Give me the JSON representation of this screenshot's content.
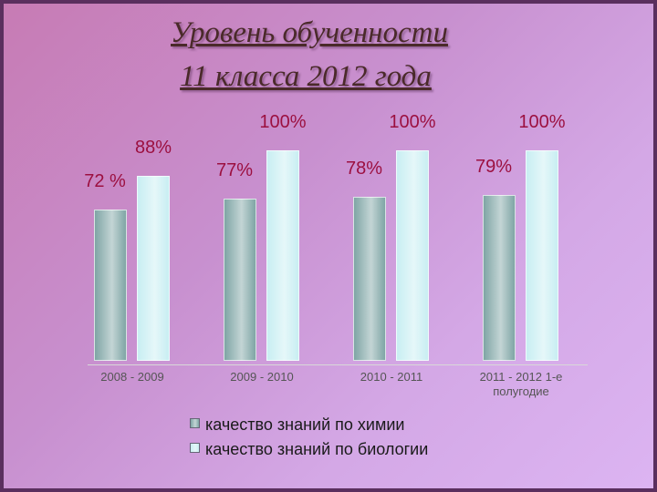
{
  "chart_data": {
    "type": "bar",
    "title": [
      "Уровень обученности",
      "11 класса  2012 года"
    ],
    "categories": [
      "2008 - 2009",
      "2009 - 2010",
      "2010 - 2011",
      "2011 - 2012 1-е полугодие"
    ],
    "series": [
      {
        "name": "качество знаний по химии",
        "color": "#7fa5a5",
        "values": [
          72,
          77,
          78,
          79
        ],
        "value_labels": [
          "72 %",
          "77%",
          "78%",
          "79%"
        ]
      },
      {
        "name": "качество знаний по биологии",
        "color": "#c8eef2",
        "values": [
          88,
          100,
          100,
          100
        ],
        "value_labels": [
          "88%",
          "100%",
          "100%",
          "100%"
        ]
      }
    ]
  }
}
